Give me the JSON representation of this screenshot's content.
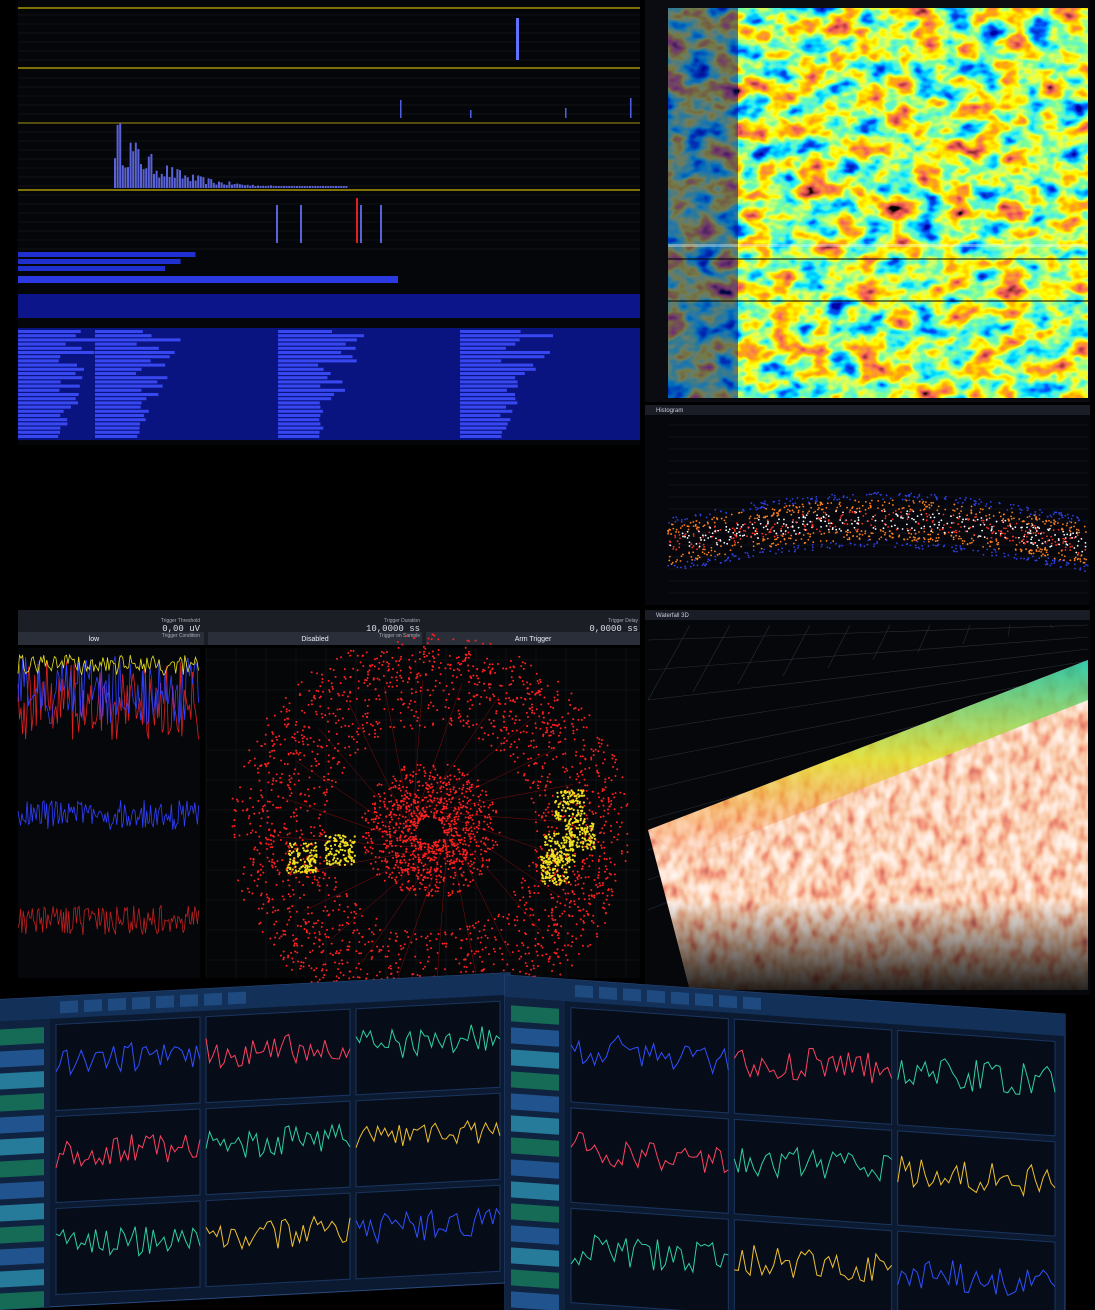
{
  "trigger_bar": {
    "threshold_label": "Trigger Threshold",
    "threshold_value": "0,00 uV",
    "duration_label": "Trigger Duration",
    "duration_value": "10,0000 ss",
    "delay_label": "Trigger Delay",
    "delay_value": "0,0000 ss",
    "condition_label": "Trigger Condition",
    "condition_value": "low",
    "sample_label": "Trigger on Sample",
    "sample_value": "Disabled",
    "arm_button": "Arm Trigger"
  },
  "panels": {
    "histogram": "Histogram",
    "waterfall_3d": "Waterfall 3D"
  }
}
